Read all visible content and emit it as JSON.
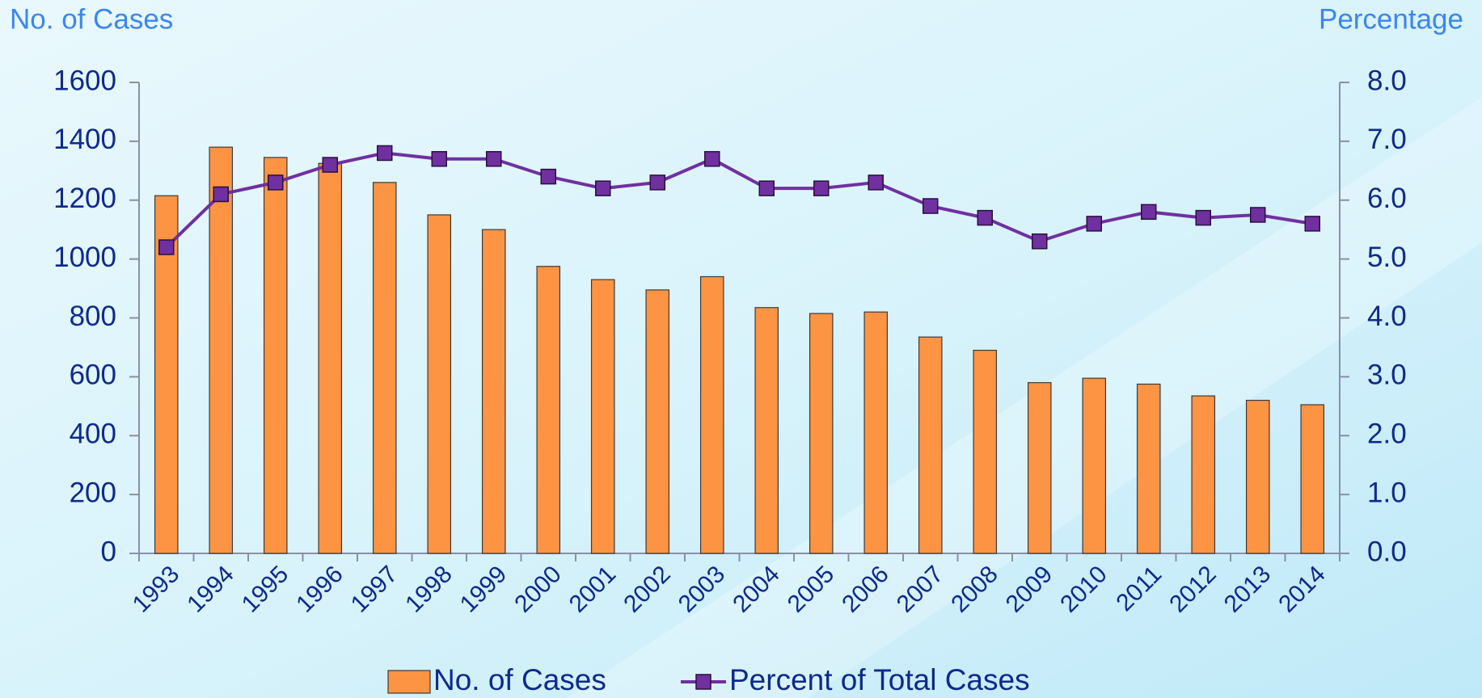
{
  "chart_data": {
    "type": "bar_line",
    "y_label": "No. of Cases",
    "y2_label": "Percentage",
    "categories": [
      "1993",
      "1994",
      "1995",
      "1996",
      "1997",
      "1998",
      "1999",
      "2000",
      "2001",
      "2002",
      "2003",
      "2004",
      "2005",
      "2006",
      "2007",
      "2008",
      "2009",
      "2010",
      "2011",
      "2012",
      "2013",
      "2014"
    ],
    "series": [
      {
        "name": "No. of Cases",
        "type": "bar",
        "color": "#fc9444",
        "values": [
          1215,
          1380,
          1345,
          1325,
          1260,
          1150,
          1100,
          975,
          930,
          895,
          940,
          835,
          815,
          820,
          735,
          690,
          580,
          595,
          575,
          535,
          520,
          505
        ]
      },
      {
        "name": "Percent of Total Cases",
        "type": "line",
        "axis": "y2",
        "color": "#7030a0",
        "values": [
          5.2,
          6.1,
          6.3,
          6.6,
          6.8,
          6.7,
          6.7,
          6.4,
          6.2,
          6.3,
          6.7,
          6.2,
          6.2,
          6.3,
          5.9,
          5.7,
          5.3,
          5.6,
          5.8,
          5.7,
          5.75,
          5.6
        ]
      }
    ],
    "ylim": [
      0,
      1600
    ],
    "yticks": [
      0,
      200,
      400,
      600,
      800,
      1000,
      1200,
      1400,
      1600
    ],
    "y2lim": [
      0,
      8
    ],
    "y2ticks": [
      {
        "value": 0,
        "label": "0.0"
      },
      {
        "value": 1,
        "label": "1.0"
      },
      {
        "value": 2,
        "label": "2.0"
      },
      {
        "value": 3,
        "label": "3.0"
      },
      {
        "value": 4,
        "label": "4.0"
      },
      {
        "value": 5,
        "label": "5.0"
      },
      {
        "value": 6,
        "label": "6.0"
      },
      {
        "value": 7,
        "label": "7.0"
      },
      {
        "value": 8,
        "label": "8.0"
      }
    ],
    "legend": "bottom"
  }
}
